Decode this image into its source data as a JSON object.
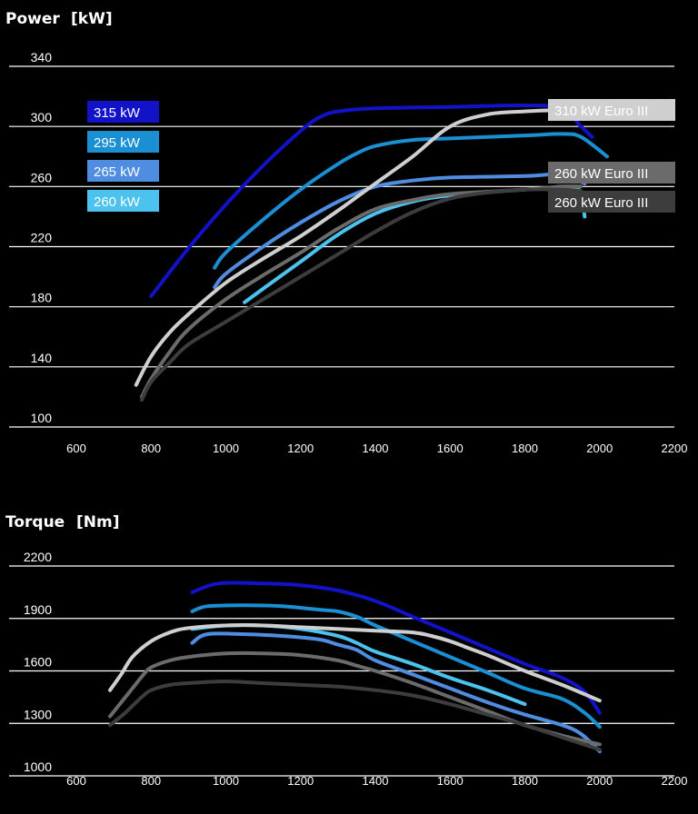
{
  "colors": {
    "background": "#000000",
    "grid": "#ffffff",
    "315 kW": "#1212c8",
    "295 kW": "#1a8fd2",
    "265 kW": "#4f8de0",
    "260 kW": "#4cc2ee",
    "310 kW Euro III": "#cfcfcf",
    "260 kW Euro III a": "#6b6b6b",
    "260 kW Euro III b": "#3d3d3d"
  },
  "chart_data": [
    {
      "type": "line",
      "title": "Power",
      "unit": "[kW]",
      "xlim": [
        600,
        2200
      ],
      "ylim": [
        100,
        340
      ],
      "x_ticks": [
        "600",
        "800",
        "1000",
        "1200",
        "1400",
        "1600",
        "1800",
        "2000",
        "2200"
      ],
      "y_ticks": [
        "100",
        "140",
        "180",
        "220",
        "260",
        "300",
        "340"
      ],
      "grid": true,
      "legend": [
        {
          "label": "315 kW",
          "color": "#1212c8",
          "text_color": "#ffffff"
        },
        {
          "label": "295 kW",
          "color": "#1a8fd2",
          "text_color": "#ffffff"
        },
        {
          "label": "265 kW",
          "color": "#4f8de0",
          "text_color": "#ffffff"
        },
        {
          "label": "260 kW",
          "color": "#4cc2ee",
          "text_color": "#ffffff"
        },
        {
          "label": "310 kW Euro III",
          "color": "#cfcfcf",
          "text_color": "#ffffff"
        },
        {
          "label": "260 kW Euro III",
          "color": "#6b6b6b",
          "text_color": "#ffffff"
        },
        {
          "label": "260 kW Euro III",
          "color": "#3d3d3d",
          "text_color": "#ffffff"
        }
      ],
      "series": [
        {
          "color": "#1212c8",
          "points": [
            [
              800,
              187
            ],
            [
              900,
              219
            ],
            [
              1000,
              248
            ],
            [
              1100,
              274
            ],
            [
              1200,
              297
            ],
            [
              1250,
              306
            ],
            [
              1300,
              310
            ],
            [
              1400,
              312
            ],
            [
              1600,
              313
            ],
            [
              1800,
              314
            ],
            [
              1900,
              312
            ],
            [
              1950,
              300
            ],
            [
              1980,
              293
            ]
          ]
        },
        {
          "color": "#1a8fd2",
          "points": [
            [
              970,
              206
            ],
            [
              1000,
              216
            ],
            [
              1100,
              238
            ],
            [
              1200,
              258
            ],
            [
              1300,
              275
            ],
            [
              1350,
              282
            ],
            [
              1400,
              287
            ],
            [
              1500,
              291
            ],
            [
              1600,
              292
            ],
            [
              1800,
              294
            ],
            [
              1900,
              295
            ],
            [
              1950,
              293
            ],
            [
              2020,
              280
            ]
          ]
        },
        {
          "color": "#4f8de0",
          "points": [
            [
              970,
              193
            ],
            [
              1000,
              202
            ],
            [
              1100,
              220
            ],
            [
              1200,
              236
            ],
            [
              1300,
              250
            ],
            [
              1400,
              260
            ],
            [
              1500,
              264
            ],
            [
              1600,
              266
            ],
            [
              1800,
              267
            ],
            [
              1900,
              268
            ],
            [
              1960,
              262
            ]
          ]
        },
        {
          "color": "#4cc2ee",
          "points": [
            [
              1050,
              183
            ],
            [
              1100,
              192
            ],
            [
              1200,
              210
            ],
            [
              1300,
              228
            ],
            [
              1400,
              242
            ],
            [
              1500,
              250
            ],
            [
              1600,
              254
            ],
            [
              1800,
              258
            ],
            [
              1900,
              259
            ],
            [
              1930,
              258
            ],
            [
              1950,
              256
            ],
            [
              1960,
              240
            ]
          ]
        },
        {
          "color": "#cfcfcf",
          "points": [
            [
              760,
              128
            ],
            [
              800,
              147
            ],
            [
              850,
              163
            ],
            [
              900,
              175
            ],
            [
              1000,
              196
            ],
            [
              1100,
              212
            ],
            [
              1200,
              227
            ],
            [
              1300,
              244
            ],
            [
              1400,
              262
            ],
            [
              1500,
              280
            ],
            [
              1600,
              300
            ],
            [
              1700,
              308
            ],
            [
              1800,
              310
            ],
            [
              1900,
              311
            ]
          ]
        },
        {
          "color": "#6b6b6b",
          "points": [
            [
              775,
              120
            ],
            [
              800,
              132
            ],
            [
              850,
              150
            ],
            [
              900,
              165
            ],
            [
              1000,
              185
            ],
            [
              1100,
              201
            ],
            [
              1200,
              216
            ],
            [
              1300,
              232
            ],
            [
              1400,
              245
            ],
            [
              1500,
              251
            ],
            [
              1600,
              255
            ],
            [
              1800,
              258
            ],
            [
              1900,
              260
            ],
            [
              1950,
              260
            ]
          ]
        },
        {
          "color": "#3d3d3d",
          "points": [
            [
              775,
              118
            ],
            [
              800,
              130
            ],
            [
              850,
              143
            ],
            [
              900,
              155
            ],
            [
              1000,
              170
            ],
            [
              1100,
              185
            ],
            [
              1200,
              200
            ],
            [
              1300,
              215
            ],
            [
              1400,
              230
            ],
            [
              1500,
              243
            ],
            [
              1600,
              252
            ],
            [
              1700,
              256
            ],
            [
              1800,
              258
            ],
            [
              1900,
              258
            ],
            [
              1950,
              257
            ]
          ]
        }
      ]
    },
    {
      "type": "line",
      "title": "Torque",
      "unit": "[Nm]",
      "xlim": [
        600,
        2200
      ],
      "ylim": [
        1000,
        2200
      ],
      "x_ticks": [
        "600",
        "800",
        "1000",
        "1200",
        "1400",
        "1600",
        "1800",
        "2000",
        "2200"
      ],
      "y_ticks": [
        "1000",
        "1300",
        "1600",
        "1900",
        "2200"
      ],
      "grid": true,
      "series": [
        {
          "color": "#1212c8",
          "points": [
            [
              910,
              2050
            ],
            [
              980,
              2100
            ],
            [
              1100,
              2100
            ],
            [
              1200,
              2090
            ],
            [
              1300,
              2060
            ],
            [
              1400,
              2000
            ],
            [
              1500,
              1910
            ],
            [
              1600,
              1820
            ],
            [
              1700,
              1730
            ],
            [
              1800,
              1640
            ],
            [
              1900,
              1560
            ],
            [
              1960,
              1480
            ],
            [
              2000,
              1360
            ]
          ]
        },
        {
          "color": "#1a8fd2",
          "points": [
            [
              910,
              1940
            ],
            [
              950,
              1970
            ],
            [
              1050,
              1975
            ],
            [
              1150,
              1970
            ],
            [
              1250,
              1950
            ],
            [
              1300,
              1940
            ],
            [
              1350,
              1910
            ],
            [
              1400,
              1860
            ],
            [
              1500,
              1770
            ],
            [
              1600,
              1680
            ],
            [
              1700,
              1590
            ],
            [
              1800,
              1500
            ],
            [
              1900,
              1440
            ],
            [
              1960,
              1360
            ],
            [
              2000,
              1280
            ]
          ]
        },
        {
          "color": "#4f8de0",
          "points": [
            [
              910,
              1760
            ],
            [
              950,
              1810
            ],
            [
              1050,
              1810
            ],
            [
              1150,
              1800
            ],
            [
              1250,
              1780
            ],
            [
              1300,
              1750
            ],
            [
              1350,
              1720
            ],
            [
              1400,
              1660
            ],
            [
              1500,
              1580
            ],
            [
              1600,
              1500
            ],
            [
              1700,
              1420
            ],
            [
              1800,
              1350
            ],
            [
              1900,
              1290
            ],
            [
              1950,
              1240
            ],
            [
              2000,
              1140
            ]
          ]
        },
        {
          "color": "#4cc2ee",
          "points": [
            [
              910,
              1840
            ],
            [
              1000,
              1860
            ],
            [
              1100,
              1860
            ],
            [
              1200,
              1840
            ],
            [
              1300,
              1800
            ],
            [
              1350,
              1760
            ],
            [
              1400,
              1710
            ],
            [
              1500,
              1640
            ],
            [
              1600,
              1560
            ],
            [
              1700,
              1490
            ],
            [
              1800,
              1410
            ]
          ]
        },
        {
          "color": "#cfcfcf",
          "points": [
            [
              690,
              1490
            ],
            [
              720,
              1580
            ],
            [
              750,
              1680
            ],
            [
              800,
              1770
            ],
            [
              850,
              1820
            ],
            [
              900,
              1845
            ],
            [
              1000,
              1860
            ],
            [
              1100,
              1860
            ],
            [
              1200,
              1850
            ],
            [
              1300,
              1840
            ],
            [
              1400,
              1830
            ],
            [
              1500,
              1820
            ],
            [
              1550,
              1800
            ],
            [
              1600,
              1770
            ],
            [
              1650,
              1730
            ],
            [
              1700,
              1690
            ],
            [
              1800,
              1600
            ],
            [
              1900,
              1520
            ],
            [
              2000,
              1430
            ]
          ]
        },
        {
          "color": "#6b6b6b",
          "points": [
            [
              690,
              1340
            ],
            [
              720,
              1420
            ],
            [
              750,
              1500
            ],
            [
              780,
              1580
            ],
            [
              800,
              1620
            ],
            [
              850,
              1660
            ],
            [
              900,
              1680
            ],
            [
              1000,
              1700
            ],
            [
              1100,
              1700
            ],
            [
              1200,
              1690
            ],
            [
              1300,
              1660
            ],
            [
              1350,
              1630
            ],
            [
              1400,
              1600
            ],
            [
              1500,
              1530
            ],
            [
              1600,
              1450
            ],
            [
              1700,
              1370
            ],
            [
              1800,
              1290
            ],
            [
              1900,
              1230
            ],
            [
              2000,
              1180
            ]
          ]
        },
        {
          "color": "#3d3d3d",
          "points": [
            [
              690,
              1290
            ],
            [
              720,
              1340
            ],
            [
              750,
              1400
            ],
            [
              780,
              1460
            ],
            [
              800,
              1490
            ],
            [
              850,
              1520
            ],
            [
              900,
              1530
            ],
            [
              1000,
              1540
            ],
            [
              1100,
              1530
            ],
            [
              1200,
              1520
            ],
            [
              1300,
              1510
            ],
            [
              1400,
              1490
            ],
            [
              1500,
              1460
            ],
            [
              1600,
              1410
            ],
            [
              1700,
              1350
            ],
            [
              1800,
              1290
            ],
            [
              1900,
              1220
            ],
            [
              2000,
              1150
            ]
          ]
        }
      ]
    }
  ]
}
